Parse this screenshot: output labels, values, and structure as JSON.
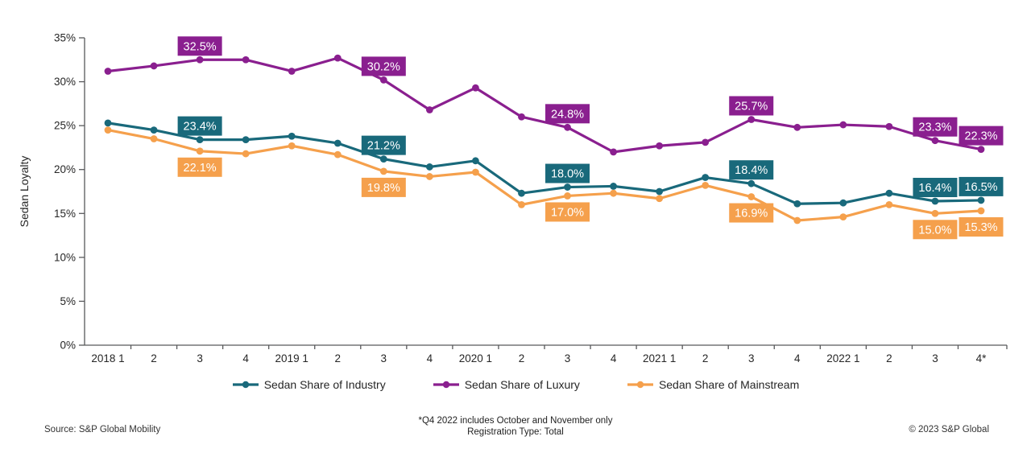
{
  "chart_data": {
    "type": "line",
    "title": "",
    "xlabel": "",
    "ylabel": "Sedan Loyalty",
    "ylim": [
      0,
      35
    ],
    "ytick_step": 5,
    "ytick_suffix": "%",
    "grid": false,
    "legend_position": "bottom",
    "categories": [
      "2018 1",
      "2",
      "3",
      "4",
      "2019 1",
      "2",
      "3",
      "4",
      "2020 1",
      "2",
      "3",
      "4",
      "2021 1",
      "2",
      "3",
      "4",
      "2022 1",
      "2",
      "3",
      "4*"
    ],
    "series": [
      {
        "name": "Sedan Share of Luxury",
        "color": "#8A1F8F",
        "callout_placement": "above",
        "values": [
          31.2,
          31.8,
          32.5,
          32.5,
          31.2,
          32.7,
          30.2,
          26.8,
          29.3,
          26.0,
          24.8,
          22.0,
          22.7,
          23.1,
          25.7,
          24.8,
          25.1,
          24.9,
          23.3,
          22.3
        ],
        "callouts": [
          {
            "index": 2,
            "text": "32.5%"
          },
          {
            "index": 6,
            "text": "30.2%"
          },
          {
            "index": 10,
            "text": "24.8%"
          },
          {
            "index": 14,
            "text": "25.7%"
          },
          {
            "index": 18,
            "text": "23.3%"
          },
          {
            "index": 19,
            "text": "22.3%"
          }
        ]
      },
      {
        "name": "Sedan Share of Industry",
        "color": "#19697B",
        "callout_placement": "above",
        "values": [
          25.3,
          24.5,
          23.4,
          23.4,
          23.8,
          23.0,
          21.2,
          20.3,
          21.0,
          17.3,
          18.0,
          18.1,
          17.5,
          19.1,
          18.4,
          16.1,
          16.2,
          17.3,
          16.4,
          16.5
        ],
        "callouts": [
          {
            "index": 2,
            "text": "23.4%"
          },
          {
            "index": 6,
            "text": "21.2%"
          },
          {
            "index": 10,
            "text": "18.0%"
          },
          {
            "index": 14,
            "text": "18.4%"
          },
          {
            "index": 18,
            "text": "16.4%"
          },
          {
            "index": 19,
            "text": "16.5%"
          }
        ]
      },
      {
        "name": "Sedan Share of Mainstream",
        "color": "#F5A04C",
        "callout_placement": "below",
        "values": [
          24.5,
          23.5,
          22.1,
          21.8,
          22.7,
          21.7,
          19.8,
          19.2,
          19.7,
          16.0,
          17.0,
          17.3,
          16.7,
          18.2,
          16.9,
          14.2,
          14.6,
          16.0,
          15.0,
          15.3
        ],
        "callouts": [
          {
            "index": 2,
            "text": "22.1%"
          },
          {
            "index": 6,
            "text": "19.8%"
          },
          {
            "index": 10,
            "text": "17.0%"
          },
          {
            "index": 14,
            "text": "16.9%"
          },
          {
            "index": 18,
            "text": "15.0%"
          },
          {
            "index": 19,
            "text": "15.3%"
          }
        ]
      }
    ],
    "legend_order": [
      "Sedan Share of Industry",
      "Sedan Share of Luxury",
      "Sedan Share of Mainstream"
    ]
  },
  "footer": {
    "source": "Source: S&P Global Mobility",
    "note_line1": "*Q4 2022 includes October and November only",
    "note_line2": "Registration Type: Total",
    "copyright": "© 2023 S&P Global"
  },
  "style": {
    "axis_color": "#58595B",
    "text_color": "#262626",
    "label_text_color": "#FFFFFF"
  }
}
